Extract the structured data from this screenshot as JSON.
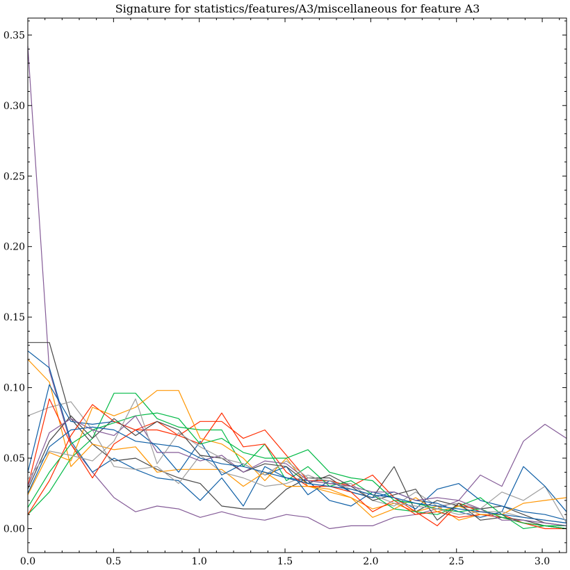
{
  "chart_data": {
    "type": "line",
    "title": "Signature for statistics/features/A3/miscellaneous for feature A3",
    "xlabel": "",
    "ylabel": "",
    "xlim": [
      0,
      3.1416
    ],
    "ylim": [
      -0.017,
      0.362
    ],
    "grid": false,
    "x_ticks": [
      0.0,
      0.5,
      1.0,
      1.5,
      2.0,
      2.5,
      3.0
    ],
    "x_tick_labels": [
      "0.0",
      "0.5",
      "1.0",
      "1.5",
      "2.0",
      "2.5",
      "3.0"
    ],
    "y_ticks": [
      0.0,
      0.05,
      0.1,
      0.15,
      0.2,
      0.25,
      0.3,
      0.35
    ],
    "y_tick_labels": [
      "0.00",
      "0.05",
      "0.10",
      "0.15",
      "0.20",
      "0.25",
      "0.30",
      "0.35"
    ],
    "x": [
      0.0,
      0.1257,
      0.2513,
      0.377,
      0.5027,
      0.6283,
      0.754,
      0.8796,
      1.0053,
      1.131,
      1.2566,
      1.3823,
      1.508,
      1.6336,
      1.7593,
      1.885,
      2.0106,
      2.1363,
      2.2619,
      2.3876,
      2.5133,
      2.6389,
      2.7646,
      2.8903,
      3.0159,
      3.1416
    ],
    "series": [
      {
        "color": "#845B97",
        "values": [
          0.342,
          0.112,
          0.06,
          0.04,
          0.022,
          0.012,
          0.016,
          0.014,
          0.008,
          0.012,
          0.008,
          0.006,
          0.01,
          0.008,
          0.0,
          0.002,
          0.002,
          0.008,
          0.01,
          0.014,
          0.02,
          0.038,
          0.03,
          0.062,
          0.074,
          0.064
        ]
      },
      {
        "color": "#474747",
        "values": [
          0.132,
          0.132,
          0.078,
          0.06,
          0.048,
          0.05,
          0.042,
          0.036,
          0.032,
          0.016,
          0.014,
          0.014,
          0.028,
          0.036,
          0.036,
          0.026,
          0.022,
          0.044,
          0.012,
          0.02,
          0.016,
          0.014,
          0.016,
          0.01,
          0.004,
          0.002
        ]
      },
      {
        "color": "#0C5DA5",
        "values": [
          0.126,
          0.114,
          0.062,
          0.04,
          0.05,
          0.042,
          0.036,
          0.034,
          0.02,
          0.036,
          0.016,
          0.044,
          0.036,
          0.034,
          0.02,
          0.016,
          0.026,
          0.022,
          0.014,
          0.028,
          0.032,
          0.02,
          0.016,
          0.012,
          0.01,
          0.006
        ]
      },
      {
        "color": "#FF9500",
        "values": [
          0.12,
          0.104,
          0.044,
          0.06,
          0.056,
          0.058,
          0.04,
          0.042,
          0.042,
          0.042,
          0.03,
          0.04,
          0.03,
          0.03,
          0.026,
          0.022,
          0.014,
          0.018,
          0.012,
          0.016,
          0.006,
          0.01,
          0.008,
          0.004,
          0.002,
          0.0
        ]
      },
      {
        "color": "#9E9E9E",
        "values": [
          0.08,
          0.086,
          0.09,
          0.07,
          0.044,
          0.042,
          0.044,
          0.032,
          0.052,
          0.04,
          0.036,
          0.03,
          0.032,
          0.038,
          0.032,
          0.032,
          0.02,
          0.016,
          0.026,
          0.016,
          0.018,
          0.014,
          0.026,
          0.02,
          0.03,
          0.004
        ]
      },
      {
        "color": "#FF2C00",
        "values": [
          0.03,
          0.092,
          0.06,
          0.036,
          0.06,
          0.07,
          0.076,
          0.066,
          0.076,
          0.076,
          0.064,
          0.07,
          0.052,
          0.034,
          0.034,
          0.03,
          0.038,
          0.022,
          0.012,
          0.002,
          0.018,
          0.012,
          0.01,
          0.004,
          0.002,
          0.0
        ]
      },
      {
        "color": "#00B945",
        "values": [
          0.01,
          0.026,
          0.05,
          0.064,
          0.096,
          0.096,
          0.078,
          0.072,
          0.07,
          0.07,
          0.044,
          0.06,
          0.034,
          0.044,
          0.03,
          0.034,
          0.024,
          0.014,
          0.012,
          0.01,
          0.016,
          0.022,
          0.01,
          0.0,
          0.002,
          0.002
        ]
      },
      {
        "color": "#0C5DA5",
        "values": [
          0.04,
          0.102,
          0.076,
          0.074,
          0.076,
          0.07,
          0.058,
          0.04,
          0.062,
          0.038,
          0.046,
          0.038,
          0.044,
          0.024,
          0.034,
          0.026,
          0.022,
          0.026,
          0.02,
          0.018,
          0.012,
          0.008,
          0.012,
          0.044,
          0.03,
          0.012
        ]
      },
      {
        "color": "#FF2C00",
        "values": [
          0.01,
          0.034,
          0.066,
          0.088,
          0.076,
          0.07,
          0.07,
          0.066,
          0.06,
          0.082,
          0.058,
          0.06,
          0.04,
          0.03,
          0.03,
          0.026,
          0.012,
          0.02,
          0.01,
          0.012,
          0.008,
          0.01,
          0.008,
          0.004,
          0.0,
          0.0
        ]
      },
      {
        "color": "#FF9500",
        "values": [
          0.024,
          0.054,
          0.048,
          0.086,
          0.08,
          0.086,
          0.098,
          0.098,
          0.064,
          0.06,
          0.05,
          0.034,
          0.05,
          0.03,
          0.028,
          0.022,
          0.008,
          0.014,
          0.022,
          0.012,
          0.016,
          0.01,
          0.01,
          0.018,
          0.02,
          0.022
        ]
      },
      {
        "color": "#474747",
        "values": [
          0.028,
          0.062,
          0.08,
          0.064,
          0.078,
          0.066,
          0.076,
          0.07,
          0.052,
          0.05,
          0.04,
          0.046,
          0.044,
          0.032,
          0.038,
          0.03,
          0.02,
          0.024,
          0.028,
          0.006,
          0.018,
          0.006,
          0.008,
          0.006,
          0.002,
          0.0
        ]
      },
      {
        "color": "#00B945",
        "values": [
          0.015,
          0.04,
          0.06,
          0.07,
          0.075,
          0.08,
          0.082,
          0.078,
          0.06,
          0.064,
          0.054,
          0.05,
          0.05,
          0.056,
          0.04,
          0.036,
          0.034,
          0.02,
          0.018,
          0.014,
          0.012,
          0.014,
          0.008,
          0.004,
          0.002,
          0.0
        ]
      },
      {
        "color": "#845B97",
        "values": [
          0.03,
          0.068,
          0.078,
          0.07,
          0.066,
          0.08,
          0.054,
          0.054,
          0.048,
          0.052,
          0.04,
          0.048,
          0.046,
          0.034,
          0.032,
          0.03,
          0.026,
          0.026,
          0.02,
          0.022,
          0.02,
          0.014,
          0.006,
          0.006,
          0.004,
          0.002
        ]
      },
      {
        "color": "#9E9E9E",
        "values": [
          0.035,
          0.055,
          0.052,
          0.048,
          0.062,
          0.092,
          0.046,
          0.068,
          0.058,
          0.05,
          0.046,
          0.038,
          0.048,
          0.036,
          0.034,
          0.028,
          0.024,
          0.018,
          0.016,
          0.014,
          0.01,
          0.012,
          0.012,
          0.008,
          0.006,
          0.004
        ]
      },
      {
        "color": "#0C5DA5",
        "values": [
          0.025,
          0.058,
          0.07,
          0.072,
          0.07,
          0.062,
          0.06,
          0.058,
          0.05,
          0.046,
          0.044,
          0.04,
          0.036,
          0.032,
          0.03,
          0.028,
          0.024,
          0.022,
          0.018,
          0.016,
          0.014,
          0.012,
          0.01,
          0.008,
          0.006,
          0.004
        ]
      }
    ]
  }
}
